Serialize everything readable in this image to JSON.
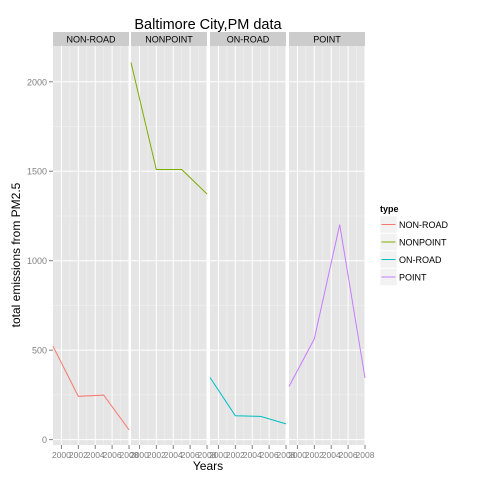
{
  "chart_data": {
    "type": "line",
    "title": "Baltimore City,PM data",
    "xlabel": "Years",
    "ylabel": "total emissions from PM2.5",
    "x": [
      1999,
      2002,
      2005,
      2008
    ],
    "x_tick_labels": [
      "2000",
      "2002",
      "2004",
      "2006",
      "2008"
    ],
    "x_tick_values": [
      2000,
      2002,
      2004,
      2006,
      2008
    ],
    "xlim": [
      1999,
      2008
    ],
    "y_tick_labels": [
      "0",
      "500",
      "1000",
      "1500",
      "2000"
    ],
    "y_tick_values": [
      0,
      500,
      1000,
      1500,
      2000
    ],
    "ylim": [
      -30,
      2200
    ],
    "grid": true,
    "facet_by": "type",
    "legend": {
      "title": "type",
      "placement": "right",
      "entries": [
        "NON-ROAD",
        "NONPOINT",
        "ON-ROAD",
        "POINT"
      ]
    },
    "series": [
      {
        "name": "NON-ROAD",
        "color": "#F8766D",
        "values": [
          522,
          242,
          249,
          55
        ]
      },
      {
        "name": "NONPOINT",
        "color": "#7CAE00",
        "values": [
          2108,
          1510,
          1510,
          1373
        ]
      },
      {
        "name": "ON-ROAD",
        "color": "#00BFC4",
        "values": [
          347,
          134,
          130,
          88
        ]
      },
      {
        "name": "POINT",
        "color": "#C77CFF",
        "values": [
          297,
          563,
          1202,
          345
        ]
      }
    ]
  }
}
